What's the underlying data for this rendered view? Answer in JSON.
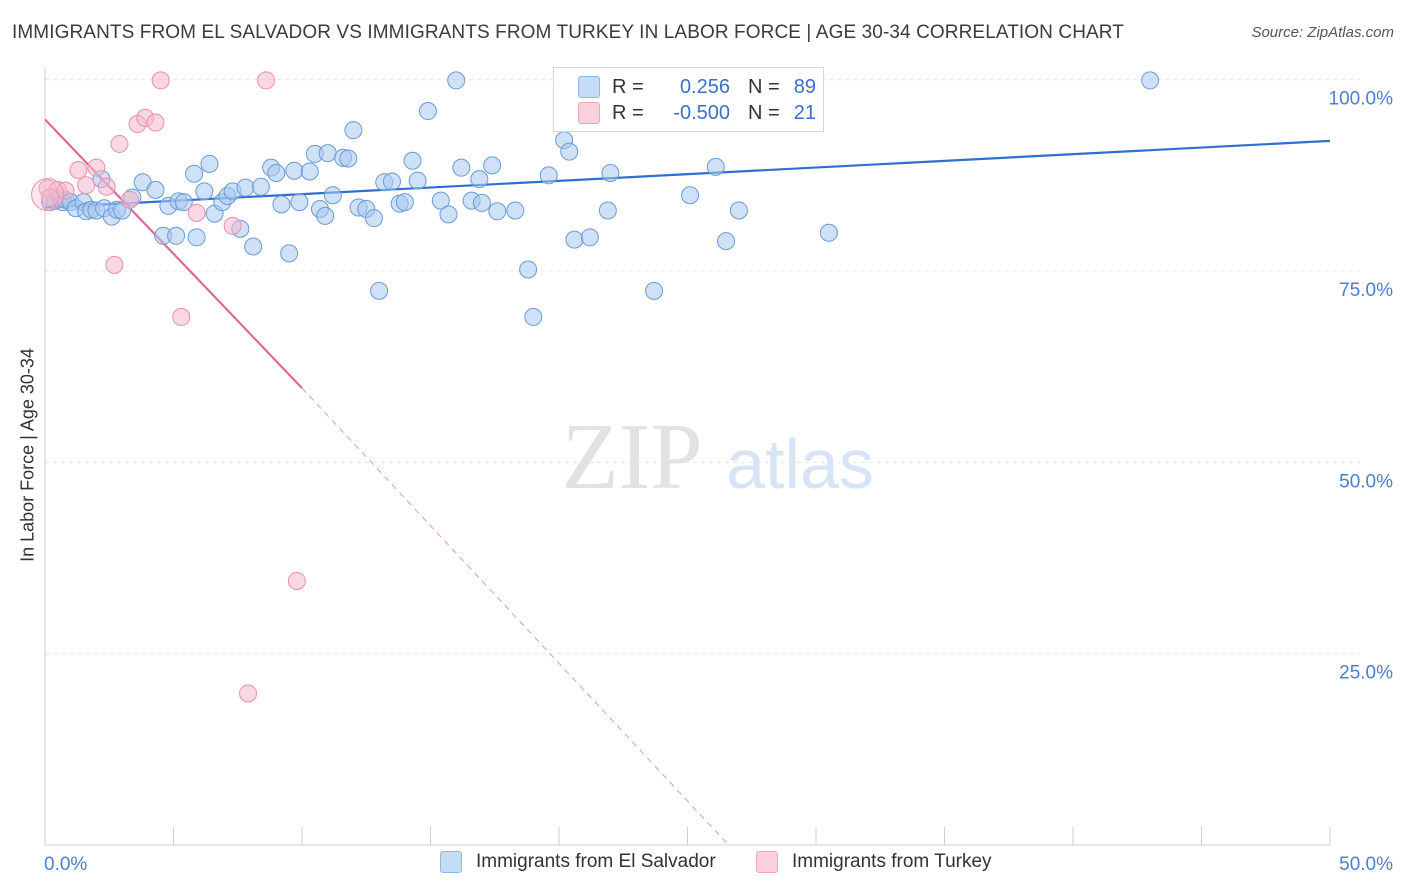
{
  "title": "IMMIGRANTS FROM EL SALVADOR VS IMMIGRANTS FROM TURKEY IN LABOR FORCE | AGE 30-34 CORRELATION CHART",
  "source": "Source: ZipAtlas.com",
  "watermark": {
    "zip": "ZIP",
    "atlas": "atlas"
  },
  "legend": {
    "rows": [
      {
        "r_label": "R =",
        "r_value": "0.256",
        "n_label": "N =",
        "n_value": "89",
        "color": "#a8c8f0"
      },
      {
        "r_label": "R =",
        "r_value": "-0.500",
        "n_label": "N =",
        "n_value": "21",
        "color": "#f6b8cc"
      }
    ]
  },
  "bottom_legend": [
    {
      "label": "Immigrants from El Salvador",
      "color": "#a8c8f0"
    },
    {
      "label": "Immigrants from Turkey",
      "color": "#f6b8cc"
    }
  ],
  "chart_data": {
    "type": "scatter",
    "title": "IMMIGRANTS FROM EL SALVADOR VS IMMIGRANTS FROM TURKEY IN LABOR FORCE | AGE 30-34 CORRELATION CHART",
    "ylabel": "In Labor Force | Age 30-34",
    "xlabel": "",
    "xlim": [
      0,
      50
    ],
    "ylim": [
      0,
      101
    ],
    "x_tick_labels": [
      "0.0%",
      "50.0%"
    ],
    "y_ticks": [
      25,
      50,
      75,
      100
    ],
    "y_tick_labels": [
      "25.0%",
      "50.0%",
      "75.0%",
      "100.0%"
    ],
    "grid": true,
    "legend_position": "top-center",
    "series": [
      {
        "name": "Immigrants from El Salvador",
        "color": "#a8c8f0",
        "stroke": "#6a9ad8",
        "trend": {
          "x": [
            0,
            50
          ],
          "y": [
            83.3,
            92.0
          ],
          "color": "#2f6fcf"
        },
        "points": [
          [
            0.2,
            84.0
          ],
          [
            0.4,
            84.2
          ],
          [
            0.6,
            84.5
          ],
          [
            0.7,
            84.0
          ],
          [
            0.8,
            84.3
          ],
          [
            1.0,
            84.0
          ],
          [
            1.2,
            83.2
          ],
          [
            1.5,
            84.0
          ],
          [
            1.6,
            82.8
          ],
          [
            1.8,
            83.0
          ],
          [
            2.0,
            82.9
          ],
          [
            2.2,
            87.0
          ],
          [
            2.3,
            83.2
          ],
          [
            2.6,
            82.1
          ],
          [
            2.8,
            83.0
          ],
          [
            3.0,
            82.9
          ],
          [
            3.4,
            84.6
          ],
          [
            3.8,
            86.6
          ],
          [
            4.3,
            85.6
          ],
          [
            4.6,
            79.6
          ],
          [
            4.8,
            83.5
          ],
          [
            5.1,
            79.6
          ],
          [
            5.2,
            84.1
          ],
          [
            5.4,
            84.0
          ],
          [
            5.8,
            87.7
          ],
          [
            5.9,
            79.4
          ],
          [
            6.2,
            85.4
          ],
          [
            6.4,
            89.0
          ],
          [
            6.6,
            82.5
          ],
          [
            6.9,
            84.0
          ],
          [
            7.1,
            84.8
          ],
          [
            7.3,
            85.4
          ],
          [
            7.6,
            80.5
          ],
          [
            7.8,
            85.9
          ],
          [
            8.1,
            78.2
          ],
          [
            8.4,
            86.0
          ],
          [
            8.8,
            88.5
          ],
          [
            9.0,
            87.8
          ],
          [
            9.2,
            83.7
          ],
          [
            9.5,
            77.3
          ],
          [
            9.7,
            88.1
          ],
          [
            9.9,
            84.0
          ],
          [
            10.3,
            88.0
          ],
          [
            10.5,
            90.3
          ],
          [
            10.7,
            83.1
          ],
          [
            10.9,
            82.2
          ],
          [
            11.0,
            90.4
          ],
          [
            11.2,
            84.9
          ],
          [
            11.6,
            89.8
          ],
          [
            11.8,
            89.7
          ],
          [
            12.0,
            93.4
          ],
          [
            12.2,
            83.3
          ],
          [
            12.5,
            83.1
          ],
          [
            12.8,
            81.9
          ],
          [
            13.0,
            72.4
          ],
          [
            13.2,
            86.6
          ],
          [
            13.5,
            86.7
          ],
          [
            13.8,
            83.8
          ],
          [
            14.0,
            84.0
          ],
          [
            14.3,
            89.4
          ],
          [
            14.5,
            86.8
          ],
          [
            14.9,
            95.9
          ],
          [
            15.4,
            84.2
          ],
          [
            15.7,
            82.4
          ],
          [
            16.0,
            99.9
          ],
          [
            16.2,
            88.5
          ],
          [
            16.6,
            84.2
          ],
          [
            16.9,
            87.0
          ],
          [
            17.0,
            83.9
          ],
          [
            17.4,
            88.8
          ],
          [
            17.6,
            82.8
          ],
          [
            18.3,
            82.9
          ],
          [
            18.8,
            75.2
          ],
          [
            19.0,
            69.0
          ],
          [
            19.6,
            87.5
          ],
          [
            20.2,
            92.1
          ],
          [
            20.4,
            90.6
          ],
          [
            20.6,
            79.1
          ],
          [
            21.0,
            97.3
          ],
          [
            21.2,
            79.4
          ],
          [
            21.9,
            82.9
          ],
          [
            22.0,
            87.8
          ],
          [
            23.7,
            72.4
          ],
          [
            25.1,
            84.9
          ],
          [
            26.1,
            88.6
          ],
          [
            26.5,
            78.9
          ],
          [
            27.0,
            82.9
          ],
          [
            30.5,
            80.0
          ],
          [
            43.0,
            99.9
          ]
        ]
      },
      {
        "name": "Immigrants from Turkey",
        "color": "#f6b8cc",
        "stroke": "#e890ac",
        "trend": {
          "x": [
            0,
            10
          ],
          "y": [
            94.8,
            59.7
          ],
          "color": "#e0688f",
          "dashed_to": [
            26.6,
            0
          ]
        },
        "points": [
          [
            0.1,
            85.8
          ],
          [
            0.5,
            85.6
          ],
          [
            0.8,
            85.5
          ],
          [
            1.3,
            88.2
          ],
          [
            1.6,
            86.2
          ],
          [
            2.0,
            88.5
          ],
          [
            2.4,
            86.0
          ],
          [
            2.7,
            75.8
          ],
          [
            2.9,
            91.6
          ],
          [
            3.3,
            84.3
          ],
          [
            3.6,
            94.2
          ],
          [
            3.9,
            95.0
          ],
          [
            4.3,
            94.4
          ],
          [
            4.5,
            99.9
          ],
          [
            5.3,
            69.0
          ],
          [
            5.9,
            82.6
          ],
          [
            7.3,
            80.9
          ],
          [
            7.9,
            19.8
          ],
          [
            8.6,
            99.9
          ],
          [
            9.8,
            34.5
          ],
          [
            0.2,
            84.6
          ]
        ]
      }
    ]
  }
}
